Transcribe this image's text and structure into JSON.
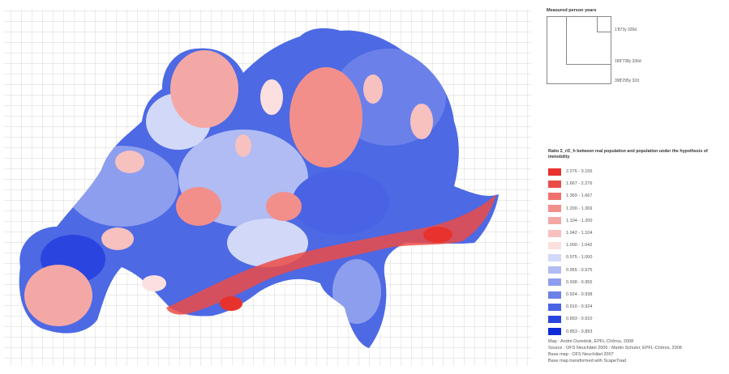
{
  "measured_person_years": {
    "title": "Measured person years",
    "labels": [
      "1'873y 326d",
      "189'738y 336d",
      "398'295y 32d"
    ]
  },
  "legend": {
    "title": "Ratio Σ_r/Σ_h between real population and population under the hypothesis of immobility",
    "items": [
      {
        "label": "2.276 - 3.156",
        "color": "#e8322e"
      },
      {
        "label": "1.667 - 2.276",
        "color": "#ec4c47"
      },
      {
        "label": "1.369 - 1.667",
        "color": "#f0716c"
      },
      {
        "label": "1.200 - 1.369",
        "color": "#f28f8b"
      },
      {
        "label": "1.104 - 1.200",
        "color": "#f4a8a5"
      },
      {
        "label": "1.042 - 1.104",
        "color": "#f7c1bf"
      },
      {
        "label": "1.000 - 1.042",
        "color": "#fbe0df"
      },
      {
        "label": "0.975 - 1.000",
        "color": "#d2d8f8"
      },
      {
        "label": "0.955 - 0.975",
        "color": "#b0bcf3"
      },
      {
        "label": "0.938 - 0.955",
        "color": "#8d9eee"
      },
      {
        "label": "0.924 - 0.938",
        "color": "#6b81e9"
      },
      {
        "label": "0.910 - 0.924",
        "color": "#4a63e4"
      },
      {
        "label": "0.893 - 0.910",
        "color": "#2a45df"
      },
      {
        "label": "0.853 - 0.893",
        "color": "#0f2bd8"
      }
    ]
  },
  "credits": {
    "line1": "Map : André Ourednik, EPFL-Chôros, 2008",
    "line2": "Source : OFS Neuchâtel 2005 ; Martin Schuler, EPFL-Chôros, 2008",
    "line3": "Base map : OFS Neuchâtel 2007",
    "line4": "Base map transformed with ScapeToad"
  }
}
